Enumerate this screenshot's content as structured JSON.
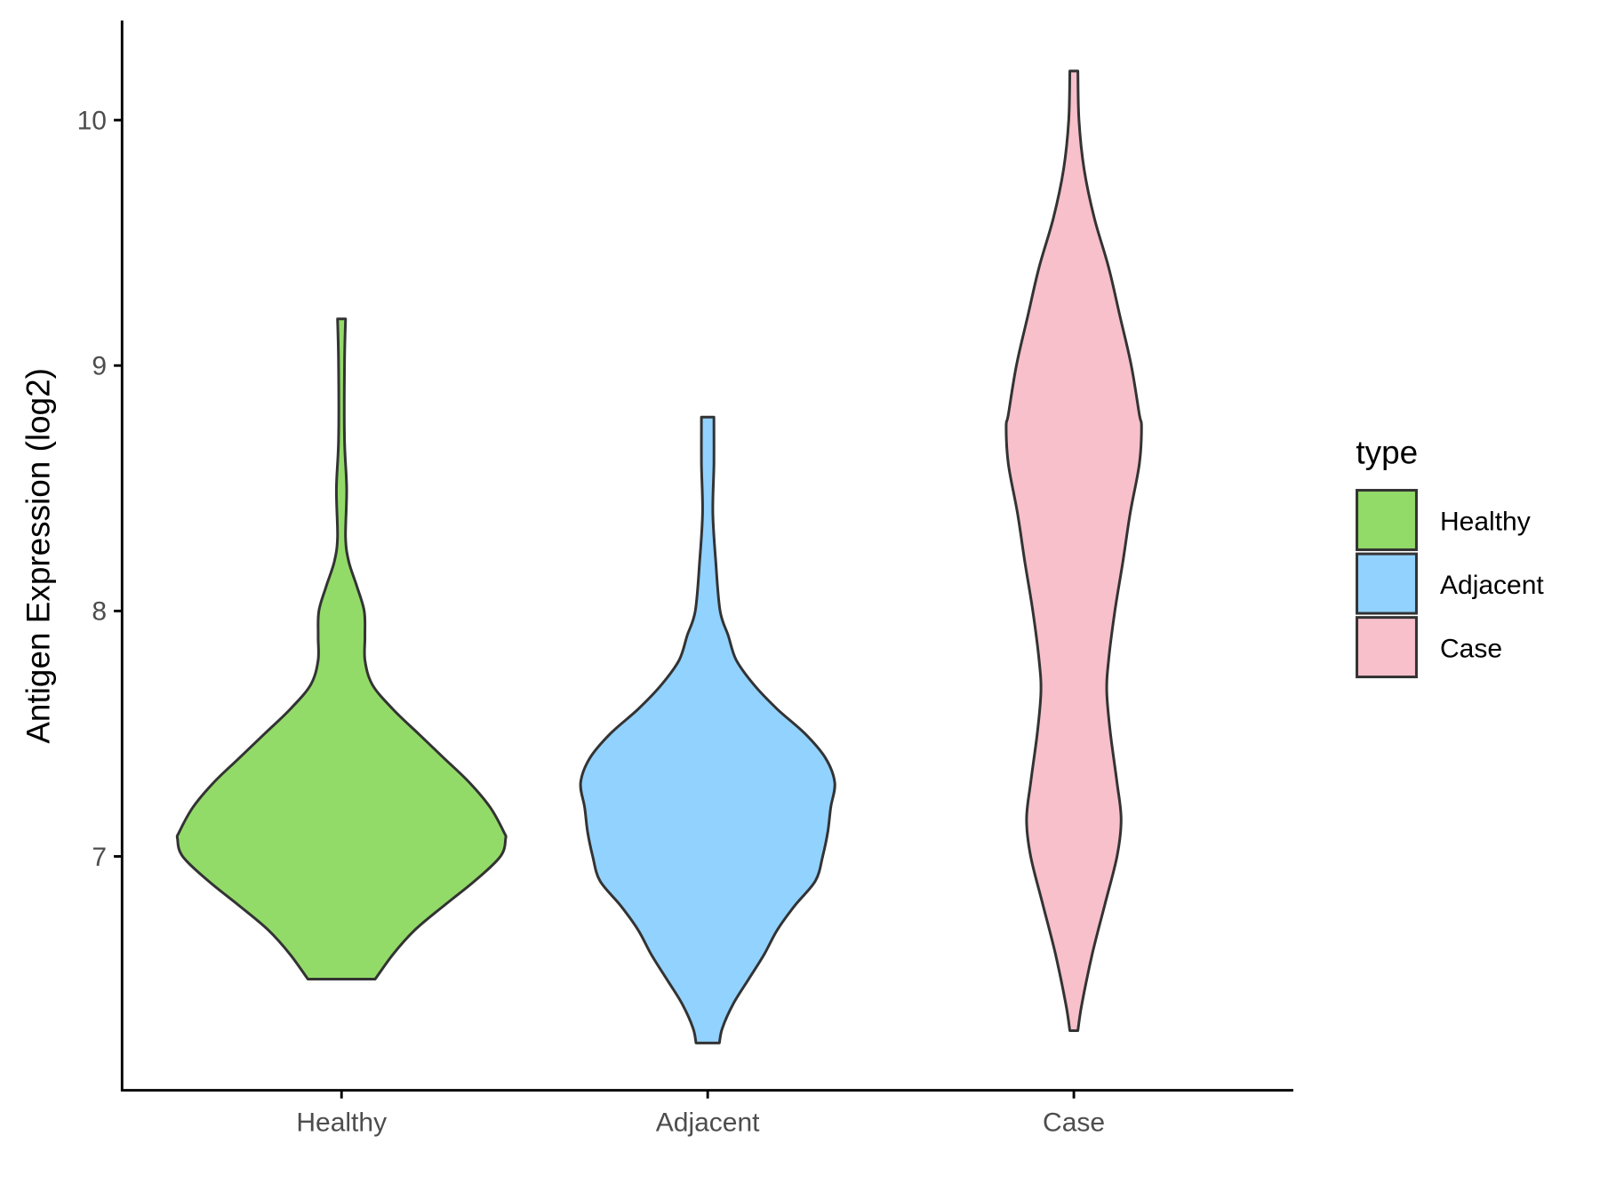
{
  "chart_data": {
    "type": "violin",
    "title": "",
    "xlabel": "",
    "ylabel": "Antigen Expression (log2)",
    "ylim": [
      6.1,
      10.4
    ],
    "yticks": [
      "7",
      "8",
      "9",
      "10"
    ],
    "categories": [
      "Healthy",
      "Adjacent",
      "Case"
    ],
    "legend": {
      "title": "type",
      "position": "right",
      "entries": [
        "Healthy",
        "Adjacent",
        "Case"
      ]
    },
    "colors": {
      "Healthy": "#93DB69",
      "Adjacent": "#92D2FF",
      "Case": "#F7C0CB",
      "outline": "#333333"
    },
    "series": [
      {
        "name": "Healthy",
        "min": 6.5,
        "max": 9.19,
        "profile": [
          [
            9.19,
            0.011
          ],
          [
            9.0,
            0.008
          ],
          [
            8.7,
            0.008
          ],
          [
            8.5,
            0.014
          ],
          [
            8.3,
            0.011
          ],
          [
            8.2,
            0.02
          ],
          [
            8.1,
            0.042
          ],
          [
            8.0,
            0.062
          ],
          [
            7.9,
            0.064
          ],
          [
            7.8,
            0.064
          ],
          [
            7.7,
            0.084
          ],
          [
            7.6,
            0.14
          ],
          [
            7.5,
            0.21
          ],
          [
            7.4,
            0.28
          ],
          [
            7.3,
            0.35
          ],
          [
            7.2,
            0.406
          ],
          [
            7.1,
            0.443
          ],
          [
            7.07,
            0.448
          ],
          [
            7.0,
            0.434
          ],
          [
            6.9,
            0.364
          ],
          [
            6.8,
            0.28
          ],
          [
            6.7,
            0.2
          ],
          [
            6.6,
            0.14
          ],
          [
            6.5,
            0.092
          ]
        ]
      },
      {
        "name": "Adjacent",
        "min": 6.24,
        "max": 8.79,
        "profile": [
          [
            8.79,
            0.017
          ],
          [
            8.6,
            0.017
          ],
          [
            8.4,
            0.014
          ],
          [
            8.2,
            0.022
          ],
          [
            8.0,
            0.034
          ],
          [
            7.9,
            0.056
          ],
          [
            7.8,
            0.078
          ],
          [
            7.7,
            0.126
          ],
          [
            7.6,
            0.19
          ],
          [
            7.5,
            0.266
          ],
          [
            7.4,
            0.322
          ],
          [
            7.3,
            0.347
          ],
          [
            7.2,
            0.336
          ],
          [
            7.1,
            0.328
          ],
          [
            7.0,
            0.314
          ],
          [
            6.9,
            0.294
          ],
          [
            6.8,
            0.238
          ],
          [
            6.7,
            0.19
          ],
          [
            6.6,
            0.154
          ],
          [
            6.5,
            0.112
          ],
          [
            6.4,
            0.07
          ],
          [
            6.3,
            0.04
          ],
          [
            6.24,
            0.032
          ]
        ]
      },
      {
        "name": "Case",
        "min": 6.29,
        "max": 10.2,
        "profile": [
          [
            10.2,
            0.011
          ],
          [
            10.0,
            0.014
          ],
          [
            9.8,
            0.028
          ],
          [
            9.6,
            0.056
          ],
          [
            9.4,
            0.095
          ],
          [
            9.2,
            0.126
          ],
          [
            9.0,
            0.157
          ],
          [
            8.8,
            0.179
          ],
          [
            8.75,
            0.185
          ],
          [
            8.6,
            0.179
          ],
          [
            8.4,
            0.154
          ],
          [
            8.2,
            0.134
          ],
          [
            8.0,
            0.112
          ],
          [
            7.8,
            0.095
          ],
          [
            7.67,
            0.09
          ],
          [
            7.5,
            0.1
          ],
          [
            7.3,
            0.118
          ],
          [
            7.15,
            0.129
          ],
          [
            7.0,
            0.118
          ],
          [
            6.8,
            0.084
          ],
          [
            6.6,
            0.05
          ],
          [
            6.4,
            0.022
          ],
          [
            6.29,
            0.011
          ]
        ]
      }
    ]
  }
}
